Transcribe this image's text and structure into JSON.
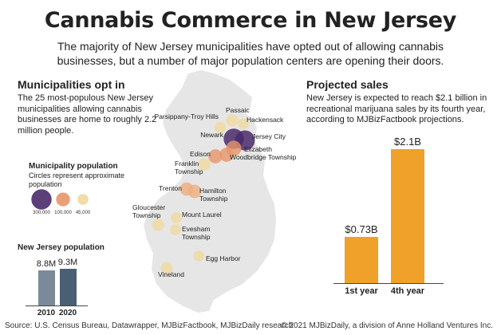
{
  "title": "Cannabis Commerce in New Jersey",
  "subtitle": "The majority of New Jersey municipalities have opted out of allowing cannabis businesses, but a number of major population centers are opening their doors.",
  "left_panel": {
    "heading": "Municipalities opt in",
    "text": "The 25 most-populous New Jersey municipalities allowing cannabis businesses are home to roughly 2.2 million people."
  },
  "legend": {
    "title": "Municipality population",
    "subtitle": "Circles represent approximate population",
    "items": [
      {
        "label": "300,000",
        "value": 300000,
        "color": "#4a2a6a"
      },
      {
        "label": "100,000",
        "value": 100000,
        "color": "#e8956a"
      },
      {
        "label": "45,000",
        "value": 45000,
        "color": "#f0d9a0"
      }
    ]
  },
  "map": {
    "state_fill": "#e6e6e6",
    "cities": [
      {
        "name": "Passaic",
        "label": "Passaic",
        "population": 70000
      },
      {
        "name": "Hackensack",
        "label": "Hackensack",
        "population": 45000
      },
      {
        "name": "Parsippany-Troy Hills",
        "label": "Parsippany-Troy Hills",
        "population": 55000
      },
      {
        "name": "Newark",
        "label": "Newark",
        "population": 300000
      },
      {
        "name": "Jersey City",
        "label": "Jersey City",
        "population": 290000
      },
      {
        "name": "Elizabeth",
        "label": "Elizabeth",
        "population": 135000
      },
      {
        "name": "Edison",
        "label": "Edison",
        "population": 105000
      },
      {
        "name": "Woodbridge Township",
        "label": "Woodbridge Township",
        "population": 105000
      },
      {
        "name": "Franklin Township",
        "label": "Franklin Township",
        "population": 70000
      },
      {
        "name": "Trenton",
        "label": "Trenton",
        "population": 90000
      },
      {
        "name": "Hamilton Township",
        "label": "Hamilton Township",
        "population": 90000
      },
      {
        "name": "Gloucester Township",
        "label": "Gloucester Township",
        "population": 65000
      },
      {
        "name": "Mount Laurel",
        "label": "Mount Laurel",
        "population": 45000
      },
      {
        "name": "Evesham Township",
        "label": "Evesham Township",
        "population": 45000
      },
      {
        "name": "Egg Harbor",
        "label": "Egg Harbor",
        "population": 45000
      },
      {
        "name": "Vineland",
        "label": "Vineland",
        "population": 60000
      }
    ]
  },
  "nj_population": {
    "title": "New Jersey population",
    "color_2010": "#7a8a99",
    "color_2020": "#4a5f72",
    "bars": [
      {
        "year": "2010",
        "label": "8.8M",
        "value": 8.8
      },
      {
        "year": "2020",
        "label": "9.3M",
        "value": 9.3
      }
    ]
  },
  "right_panel": {
    "heading": "Projected sales",
    "text": "New Jersey is expected to reach $2.1 billion in recreational marijuana sales by its fourth year, according to MJBizFactbook projections."
  },
  "chart_data": {
    "type": "bar",
    "categories": [
      "1st year",
      "4th year"
    ],
    "values": [
      0.73,
      2.1
    ],
    "value_labels": [
      "$0.73B",
      "$2.1B"
    ],
    "ylim": [
      0,
      2.1
    ],
    "bar_color": "#efa12a",
    "grid": false
  },
  "footer": {
    "source": "Source: U.S. Census Bureau, Datawrapper, MJBizFactbook, MJBizDaily research",
    "copyright": "© 2021 MJBizDaily, a division of Anne Holland Ventures Inc."
  }
}
